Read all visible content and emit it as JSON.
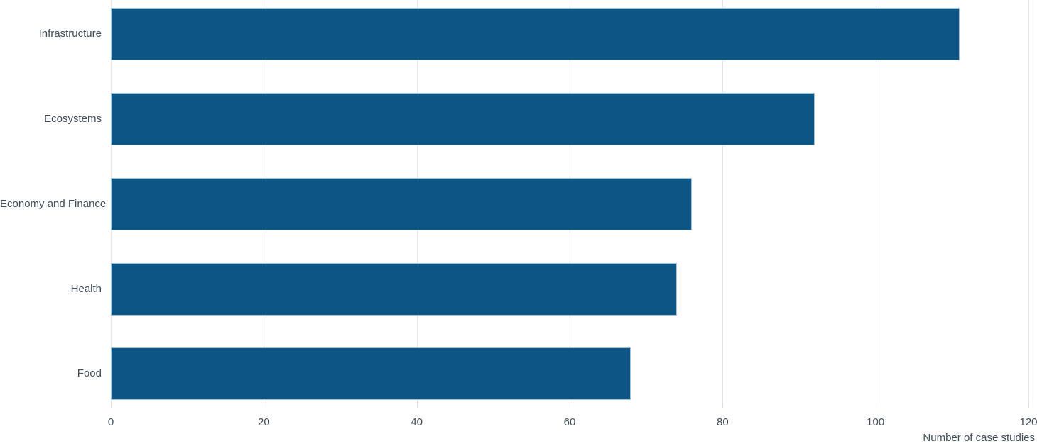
{
  "chart_data": {
    "type": "bar",
    "orientation": "horizontal",
    "title": "",
    "categories": [
      "Infrastructure",
      "Ecosystems",
      "Economy and Finance",
      "Health",
      "Food"
    ],
    "values": [
      111,
      92,
      76,
      74,
      68
    ],
    "xlabel": "Number of case studies",
    "ylabel": "",
    "xlim": [
      0,
      120
    ],
    "xticks": [
      0,
      20,
      40,
      60,
      80,
      100,
      120
    ],
    "grid": true,
    "legend": false
  },
  "colors": {
    "bar_fill": "#0d5584",
    "bar_border": "#a3c4dc",
    "text": "#404d59",
    "gridline": "#e6e6e6",
    "tick": "#e0e0e0",
    "background": "#ffffff"
  }
}
